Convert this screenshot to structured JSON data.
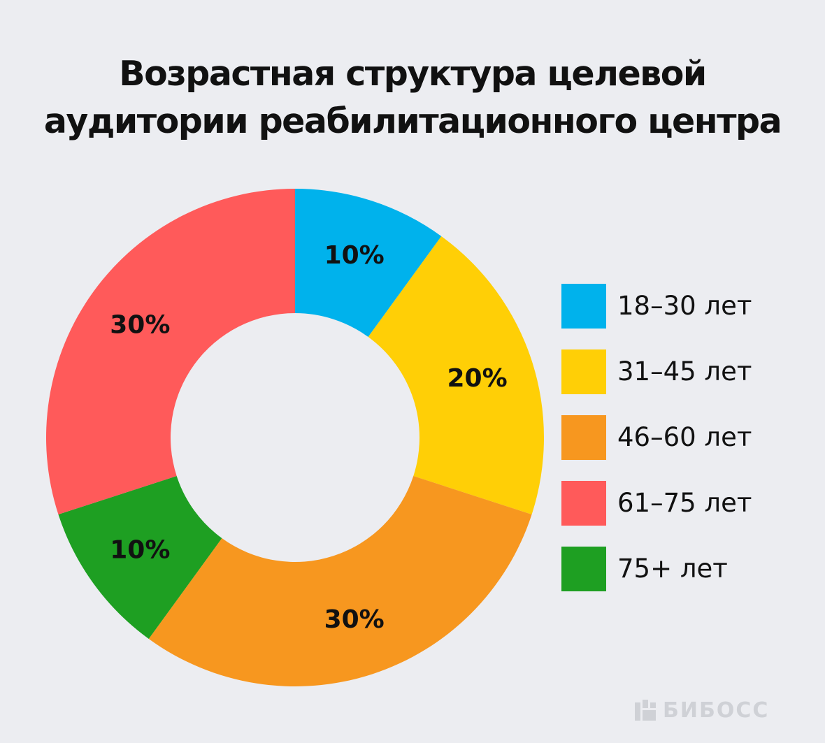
{
  "chart_data": {
    "type": "pie",
    "title_lines": [
      "Возрастная структура целевой",
      "аудитории реабилитационного центра"
    ],
    "slices": [
      {
        "label": "18–30 лет",
        "value": 10,
        "value_label": "10%",
        "color": "#00b2ec"
      },
      {
        "label": "31–45 лет",
        "value": 20,
        "value_label": "20%",
        "color": "#ffcf06"
      },
      {
        "label": "46–60 лет",
        "value": 30,
        "value_label": "30%",
        "color": "#f7971f"
      },
      {
        "label": "75+ лет",
        "value": 10,
        "value_label": "10%",
        "color": "#1e9f22"
      },
      {
        "label": "61–75 лет",
        "value": 30,
        "value_label": "30%",
        "color": "#ff5a5a"
      }
    ],
    "legend": [
      {
        "label": "18–30 лет",
        "color": "#00b2ec"
      },
      {
        "label": "31–45 лет",
        "color": "#ffcf06"
      },
      {
        "label": "46–60 лет",
        "color": "#f7971f"
      },
      {
        "label": "61–75 лет",
        "color": "#ff5a5a"
      },
      {
        "label": "75+ лет",
        "color": "#1e9f22"
      }
    ],
    "donut": true,
    "legend_position": "right",
    "start_angle": "12 o'clock",
    "direction": "clockwise"
  },
  "watermark": {
    "text": "БИБОСС",
    "icon": "bibos-logo-icon",
    "color": "#cfd1d6"
  },
  "background_color": "#ecedf1"
}
